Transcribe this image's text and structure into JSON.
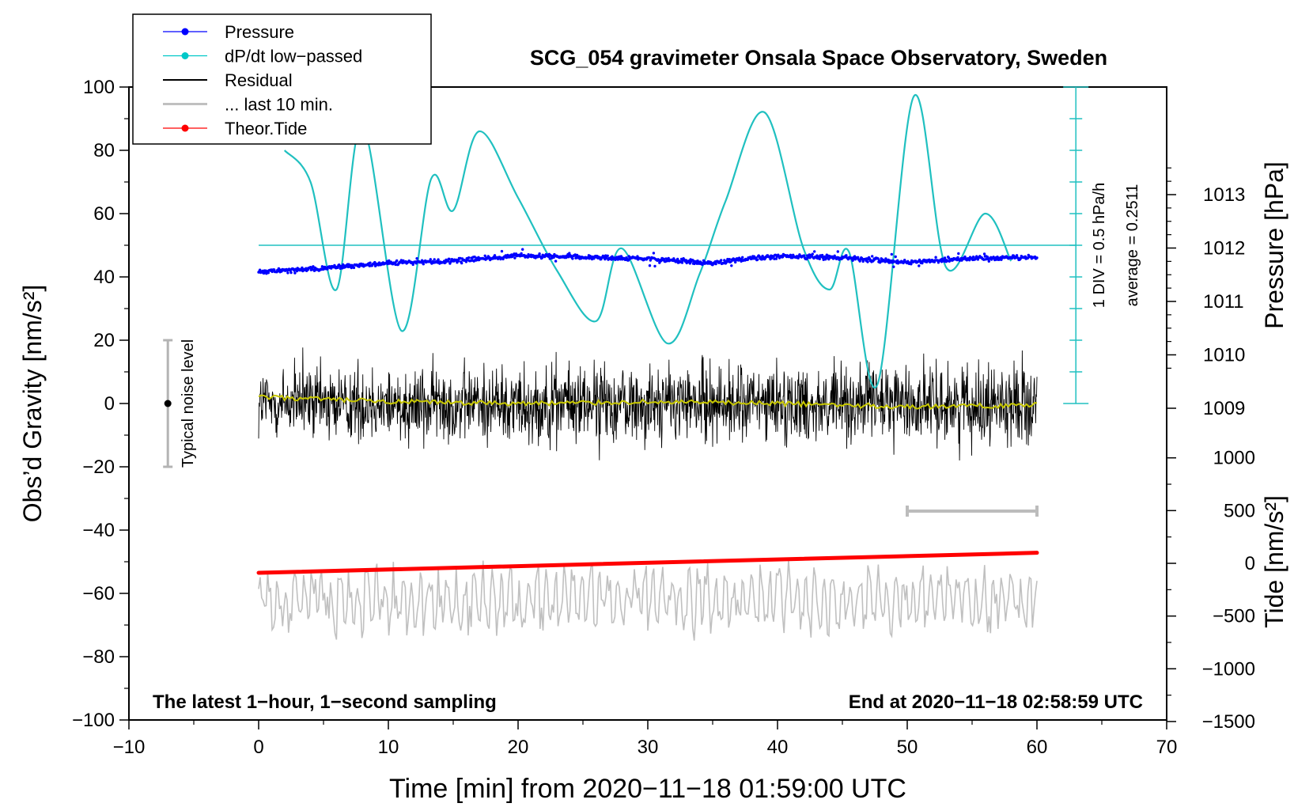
{
  "chart_data": {
    "type": "line",
    "title": "SCG_054 gravimeter Onsala Space Observatory, Sweden",
    "xlabel": "Time [min] from 2020−11−18 01:59:00 UTC",
    "ylabel_left": "Obs’d Gravity [nm/s²]",
    "ylabel_pressure": "Pressure [hPa]",
    "ylabel_tide": "Tide [nm/s²]",
    "xlim": [
      -10,
      70
    ],
    "ylim": [
      -100,
      100
    ],
    "x_ticks": [
      "−10",
      "0",
      "10",
      "20",
      "30",
      "40",
      "50",
      "60",
      "70"
    ],
    "y_ticks": [
      "100",
      "80",
      "60",
      "40",
      "20",
      "0",
      "−20",
      "−40",
      "−60",
      "−80",
      "−100"
    ],
    "pressure_ticks": [
      "1013",
      "1012",
      "1011",
      "1010",
      "1009"
    ],
    "tide_ticks": [
      "1000",
      "500",
      "0",
      "−500",
      "−1000",
      "−1500"
    ],
    "legend": [
      {
        "label": "Pressure",
        "color": "#0000ff",
        "marker": true
      },
      {
        "label": "dP/dt low−passed",
        "color": "#00c8c8",
        "marker": true
      },
      {
        "label": "Residual",
        "color": "#000000",
        "marker": false
      },
      {
        "label": "... last 10 min.",
        "color": "#c0c0c0",
        "marker": false
      },
      {
        "label": "Theor.Tide",
        "color": "#ff0000",
        "marker": true
      }
    ],
    "annotations": {
      "bottom_left": "The latest 1−hour, 1−second sampling",
      "bottom_right": "End at 2020−11−18 02:58:59 UTC",
      "noise": "Typical noise level",
      "div": "1 DIV = 0.5 hPa/h",
      "average": "average = 0.2511"
    },
    "noise_level_range": [
      -20,
      20
    ],
    "last10_bar_minutes": [
      50,
      60
    ],
    "series": [
      {
        "name": "Pressure",
        "axis": "pressure_hPa",
        "x": [
          0,
          5,
          10,
          15,
          20,
          25,
          30,
          35,
          40,
          45,
          50,
          55,
          60
        ],
        "y": [
          1011.55,
          1011.62,
          1011.72,
          1011.76,
          1011.86,
          1011.83,
          1011.8,
          1011.72,
          1011.85,
          1011.82,
          1011.73,
          1011.81,
          1011.83
        ]
      },
      {
        "name": "dP/dt low-passed",
        "axis": "left",
        "x": [
          2,
          4,
          6,
          8,
          11,
          13.3,
          15,
          17,
          20,
          23,
          26,
          28,
          31.5,
          34,
          36,
          39,
          42,
          44,
          45.5,
          47.7,
          50.5,
          53,
          56,
          58
        ],
        "y": [
          80,
          70,
          36,
          88,
          23,
          71,
          61,
          86,
          65,
          42,
          26,
          49,
          19,
          41,
          64,
          92,
          49,
          36,
          48,
          6,
          97,
          43,
          60,
          45
        ]
      },
      {
        "name": "dP/dt reference (average)",
        "axis": "left",
        "x": [
          0,
          63
        ],
        "y": [
          50,
          50
        ]
      },
      {
        "name": "Residual",
        "axis": "left",
        "x": [
          0,
          60
        ],
        "y_range": [
          -18,
          24
        ],
        "typical_amplitude": 8
      },
      {
        "name": "Residual smoothed",
        "axis": "left",
        "x": [
          0,
          10,
          20,
          30,
          40,
          50,
          60
        ],
        "y": [
          2,
          0.5,
          0,
          0.5,
          0,
          -1,
          -0.5
        ]
      },
      {
        "name": "... last 10 min.",
        "axis": "left",
        "x": [
          0,
          60
        ],
        "y_range": [
          -82,
          -45
        ],
        "center": -62
      },
      {
        "name": "Theor.Tide",
        "axis": "tide_nm_s2",
        "x": [
          0,
          60
        ],
        "y": [
          -90,
          100
        ]
      }
    ]
  }
}
